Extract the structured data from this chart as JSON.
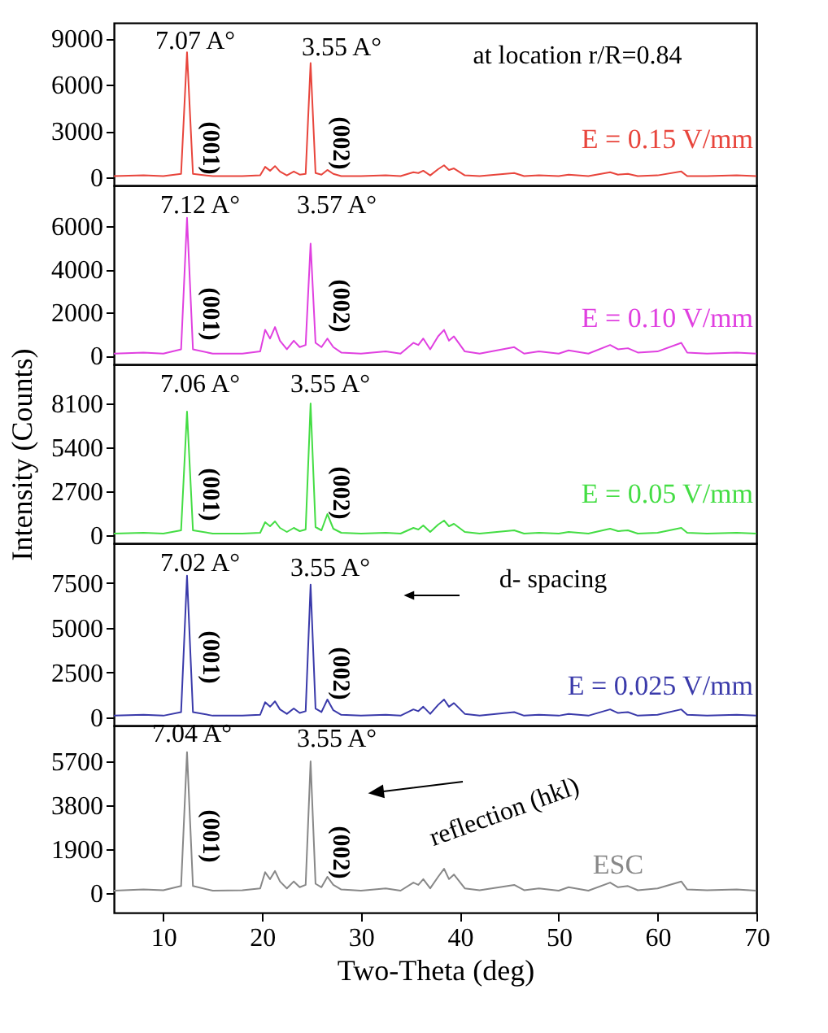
{
  "chart_data": [
    {
      "type": "line",
      "x": [
        5,
        8,
        10,
        11.8,
        12.4,
        13,
        15,
        18,
        19.8,
        20.3,
        20.8,
        21.3,
        21.8,
        22.5,
        23.2,
        23.8,
        24.4,
        24.9,
        25.4,
        26,
        26.6,
        27.2,
        28,
        30,
        32.5,
        34,
        35.3,
        35.8,
        36.3,
        37,
        37.8,
        38.4,
        38.9,
        39.4,
        40.5,
        42,
        45.5,
        46.5,
        48,
        50,
        51,
        53,
        55.2,
        56,
        57,
        58,
        60,
        62.4,
        63,
        65,
        68,
        70
      ],
      "series": [
        {
          "name": "E = 0.15 V/mm",
          "color": "#e8453c",
          "values": [
            100,
            150,
            100,
            250,
            8100,
            250,
            100,
            100,
            150,
            700,
            450,
            750,
            400,
            150,
            400,
            200,
            250,
            7400,
            300,
            200,
            500,
            250,
            100,
            100,
            150,
            100,
            350,
            300,
            450,
            150,
            550,
            800,
            500,
            600,
            150,
            100,
            300,
            100,
            150,
            100,
            200,
            100,
            350,
            200,
            250,
            100,
            150,
            400,
            100,
            100,
            150,
            100
          ]
        }
      ],
      "xlim": [
        5,
        70
      ],
      "xticks": [
        10,
        20,
        30,
        40,
        50,
        60,
        70
      ],
      "ylim": [
        -500,
        10000
      ],
      "yticks": [
        0,
        3000,
        6000,
        9000
      ],
      "tick_labels": "y",
      "annotations": [
        "7.07 A°",
        "3.55 A°",
        "(001)",
        "(002)",
        "at location r/R=0.84"
      ]
    },
    {
      "type": "line",
      "x": [
        5,
        8,
        10,
        11.8,
        12.4,
        13,
        15,
        18,
        19.8,
        20.3,
        20.8,
        21.3,
        21.8,
        22.5,
        23.2,
        23.8,
        24.4,
        24.9,
        25.4,
        26,
        26.6,
        27.2,
        28,
        30,
        32.5,
        34,
        35.3,
        35.8,
        36.3,
        37,
        37.8,
        38.4,
        38.9,
        39.4,
        40.5,
        42,
        45.5,
        46.5,
        48,
        50,
        51,
        53,
        55.2,
        56,
        57,
        58,
        60,
        62.4,
        63,
        65,
        68,
        70
      ],
      "series": [
        {
          "name": "E = 0.10 V/mm",
          "color": "#e040e0",
          "values": [
            100,
            150,
            100,
            300,
            6400,
            300,
            100,
            100,
            200,
            1200,
            800,
            1330,
            700,
            300,
            700,
            400,
            500,
            5200,
            600,
            400,
            800,
            400,
            150,
            100,
            200,
            100,
            600,
            500,
            800,
            300,
            900,
            1200,
            700,
            900,
            200,
            100,
            400,
            100,
            200,
            100,
            250,
            100,
            500,
            300,
            350,
            150,
            200,
            600,
            150,
            100,
            150,
            100
          ]
        }
      ],
      "xlim": [
        5,
        70
      ],
      "xticks": [
        10,
        20,
        30,
        40,
        50,
        60,
        70
      ],
      "ylim": [
        -400,
        7900
      ],
      "yticks": [
        0,
        2000,
        4000,
        6000
      ],
      "tick_labels": "y",
      "annotations": [
        "7.12 A°",
        "3.57 A°",
        "(001)",
        "(002)"
      ]
    },
    {
      "type": "line",
      "x": [
        5,
        8,
        10,
        11.8,
        12.4,
        13,
        15,
        18,
        19.8,
        20.3,
        20.8,
        21.3,
        21.8,
        22.5,
        23.2,
        23.8,
        24.4,
        24.9,
        25.4,
        26,
        26.6,
        27.2,
        28,
        30,
        32.5,
        34,
        35.3,
        35.8,
        36.3,
        37,
        37.8,
        38.4,
        38.9,
        39.4,
        40.5,
        42,
        45.5,
        46.5,
        48,
        50,
        51,
        53,
        55.2,
        56,
        57,
        58,
        60,
        62.4,
        63,
        65,
        68,
        70
      ],
      "series": [
        {
          "name": "E = 0.05 V/mm",
          "color": "#44dd44",
          "values": [
            100,
            150,
            100,
            300,
            7600,
            300,
            100,
            100,
            150,
            800,
            550,
            850,
            450,
            200,
            450,
            250,
            350,
            8100,
            500,
            300,
            1300,
            400,
            150,
            100,
            150,
            100,
            450,
            350,
            600,
            200,
            650,
            900,
            550,
            700,
            200,
            100,
            300,
            100,
            150,
            100,
            200,
            100,
            400,
            250,
            300,
            100,
            150,
            450,
            150,
            100,
            150,
            100
          ]
        }
      ],
      "xlim": [
        5,
        70
      ],
      "xticks": [
        10,
        20,
        30,
        40,
        50,
        60,
        70
      ],
      "ylim": [
        -500,
        10500
      ],
      "yticks": [
        0,
        2700,
        5400,
        8100
      ],
      "tick_labels": "y",
      "ylabel": "Intensity (Counts)",
      "annotations": [
        "7.06 A°",
        "3.55 A°",
        "(001)",
        "(002)"
      ]
    },
    {
      "type": "line",
      "x": [
        5,
        8,
        10,
        11.8,
        12.4,
        13,
        15,
        18,
        19.8,
        20.3,
        20.8,
        21.3,
        21.8,
        22.5,
        23.2,
        23.8,
        24.4,
        24.9,
        25.4,
        26,
        26.6,
        27.2,
        28,
        30,
        32.5,
        34,
        35.3,
        35.8,
        36.3,
        37,
        37.8,
        38.4,
        38.9,
        39.4,
        40.5,
        42,
        45.5,
        46.5,
        48,
        50,
        51,
        53,
        55.2,
        56,
        57,
        58,
        60,
        62.4,
        63,
        65,
        68,
        70
      ],
      "series": [
        {
          "name": "E = 0.025 V/mm",
          "color": "#3a3aaa",
          "values": [
            100,
            150,
            100,
            300,
            7900,
            300,
            100,
            100,
            150,
            850,
            600,
            900,
            450,
            200,
            500,
            250,
            350,
            7400,
            500,
            300,
            1000,
            400,
            150,
            100,
            150,
            100,
            450,
            350,
            600,
            200,
            700,
            1000,
            600,
            800,
            200,
            100,
            300,
            100,
            150,
            100,
            200,
            100,
            450,
            250,
            300,
            100,
            150,
            450,
            150,
            100,
            150,
            100
          ]
        }
      ],
      "xlim": [
        5,
        70
      ],
      "xticks": [
        10,
        20,
        30,
        40,
        50,
        60,
        70
      ],
      "ylim": [
        -450,
        9700
      ],
      "yticks": [
        0,
        2500,
        5000,
        7500
      ],
      "tick_labels": "y",
      "annotations": [
        "7.02 A°",
        "3.55 A°",
        "(001)",
        "(002)",
        "d- spacing"
      ]
    },
    {
      "type": "line",
      "x": [
        5,
        8,
        10,
        11.8,
        12.4,
        13,
        15,
        18,
        19.8,
        20.3,
        20.8,
        21.3,
        21.8,
        22.5,
        23.2,
        23.8,
        24.4,
        24.9,
        25.4,
        26,
        26.6,
        27.2,
        28,
        30,
        32.5,
        34,
        35.3,
        35.8,
        36.3,
        37,
        37.8,
        38.4,
        38.9,
        39.4,
        40.5,
        42,
        45.5,
        46.5,
        48,
        50,
        51,
        53,
        55.2,
        56,
        57,
        58,
        60,
        62.4,
        63,
        65,
        68,
        70
      ],
      "series": [
        {
          "name": "ESC",
          "color": "#888888",
          "values": [
            100,
            150,
            120,
            300,
            6100,
            300,
            100,
            120,
            200,
            900,
            600,
            950,
            500,
            200,
            500,
            250,
            350,
            5700,
            400,
            250,
            700,
            350,
            150,
            100,
            200,
            100,
            450,
            350,
            600,
            200,
            700,
            1050,
            600,
            800,
            200,
            120,
            350,
            120,
            200,
            100,
            250,
            100,
            450,
            250,
            300,
            120,
            200,
            500,
            150,
            120,
            150,
            100
          ]
        }
      ],
      "xlim": [
        5,
        70
      ],
      "xticks": [
        10,
        20,
        30,
        40,
        50,
        60,
        70
      ],
      "ylim": [
        -850,
        7250
      ],
      "yticks": [
        0,
        1900,
        3800,
        5700
      ],
      "xlabel": "Two-Theta (deg)",
      "annotations": [
        "7.04 A°",
        "3.55 A°",
        "(001)",
        "(002)",
        "reflection (hkl)"
      ]
    }
  ]
}
